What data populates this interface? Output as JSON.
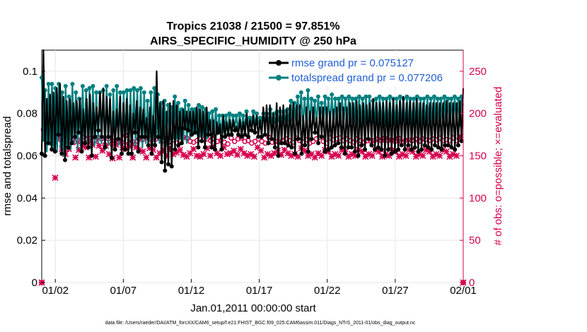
{
  "chart_data": {
    "type": "line",
    "title": "Tropics 21038 / 21500 = 97.851%",
    "subtitle": "AIRS_SPECIFIC_HUMIDITY @ 250 hPa",
    "xlabel": "Jan.01,2011 00:00:00 start",
    "ylabel": "rmse and totalspread",
    "ylabel_right": "# of obs: o=possible; ×=evaluated",
    "footer": "data file: /Users/raeder/DAI/ATM_forcXX/CAM6_setup/f.e21.FHIST_BGC.f09_025.CAM6assim.011/Diags_NTrS_2011-01/obs_diag_output.nc",
    "x_ticks": [
      "01/02",
      "01/07",
      "01/12",
      "01/17",
      "01/22",
      "01/27",
      "02/01"
    ],
    "x_tick_days": [
      1,
      6,
      11,
      16,
      21,
      26,
      31
    ],
    "xlim": [
      0,
      31
    ],
    "ylim": [
      0,
      0.11
    ],
    "y_ticks": [
      "0",
      "0.02",
      "0.04",
      "0.06",
      "0.08",
      "0.1"
    ],
    "y_tick_values": [
      0,
      0.02,
      0.04,
      0.06,
      0.08,
      0.1
    ],
    "ylim_right": [
      0,
      275
    ],
    "y_ticks_right": [
      "0",
      "50",
      "100",
      "150",
      "200",
      "250"
    ],
    "y_tick_values_right": [
      0,
      50,
      100,
      150,
      200,
      250
    ],
    "grid": true,
    "legend_position": "top-right",
    "colors": {
      "rmse": "#000000",
      "spread": "#008080",
      "obs": "#d6004f",
      "legend": "#1f5fd6"
    },
    "series": [
      {
        "name": "rmse grand pr = 0.075127",
        "axis": "left",
        "marker": "dot",
        "values": [
          0.061,
          0.11,
          0.06,
          0.087,
          0.066,
          0.089,
          0.063,
          0.09,
          0.062,
          0.092,
          0.07,
          0.094,
          0.061,
          0.088,
          0.058,
          0.086,
          0.064,
          0.087,
          0.066,
          0.085,
          0.069,
          0.086,
          0.071,
          0.087,
          0.062,
          0.082,
          0.066,
          0.087,
          0.064,
          0.089,
          0.06,
          0.085,
          0.069,
          0.083,
          0.072,
          0.09,
          0.069,
          0.092,
          0.064,
          0.088,
          0.069,
          0.087,
          0.059,
          0.081,
          0.063,
          0.082,
          0.068,
          0.088,
          0.061,
          0.085,
          0.063,
          0.087,
          0.061,
          0.084,
          0.061,
          0.08,
          0.071,
          0.086,
          0.062,
          0.083,
          0.069,
          0.082,
          0.069,
          0.078,
          0.065,
          0.083,
          0.061,
          0.079,
          0.065,
          0.1,
          0.069,
          0.085,
          0.057,
          0.086,
          0.053,
          0.081,
          0.056,
          0.085,
          0.055,
          0.086,
          0.063,
          0.084,
          0.065,
          0.081,
          0.066,
          0.082,
          0.073,
          0.081,
          0.072,
          0.081,
          0.07,
          0.081,
          0.071,
          0.083,
          0.064,
          0.082,
          0.067,
          0.081,
          0.064,
          0.083,
          0.07,
          0.077,
          0.064,
          0.077,
          0.063,
          0.076,
          0.071,
          0.075,
          0.063,
          0.079,
          0.069,
          0.076,
          0.07,
          0.077,
          0.07,
          0.077,
          0.072,
          0.074,
          0.07,
          0.077,
          0.069,
          0.076,
          0.07,
          0.08,
          0.069,
          0.077,
          0.072,
          0.079,
          0.071,
          0.079,
          0.069,
          0.077,
          0.069,
          0.083,
          0.07,
          0.084,
          0.066,
          0.084,
          0.068,
          0.08,
          0.064,
          0.085,
          0.06,
          0.083,
          0.066,
          0.084,
          0.066,
          0.082,
          0.065,
          0.084,
          0.064,
          0.085,
          0.061,
          0.084,
          0.068,
          0.084,
          0.061,
          0.079,
          0.065,
          0.083,
          0.062,
          0.081,
          0.068,
          0.083,
          0.071,
          0.078,
          0.066,
          0.083,
          0.069,
          0.083,
          0.062,
          0.083,
          0.063,
          0.081,
          0.064,
          0.082,
          0.065,
          0.083,
          0.066,
          0.085,
          0.064,
          0.083,
          0.061,
          0.083,
          0.064,
          0.085,
          0.064,
          0.085,
          0.062,
          0.086,
          0.06,
          0.084,
          0.065,
          0.085,
          0.063,
          0.084,
          0.068,
          0.085,
          0.065,
          0.087,
          0.063,
          0.085,
          0.064,
          0.085,
          0.063,
          0.085,
          0.06,
          0.086,
          0.063,
          0.085,
          0.061,
          0.087,
          0.062,
          0.084,
          0.063,
          0.086,
          0.065,
          0.088,
          0.063,
          0.085,
          0.065,
          0.086,
          0.063,
          0.085,
          0.064,
          0.087,
          0.062,
          0.085,
          0.063,
          0.085,
          0.065,
          0.084,
          0.064,
          0.085,
          0.063,
          0.085,
          0.065,
          0.085,
          0.064,
          0.085,
          0.063,
          0.085,
          0.065,
          0.086,
          0.065,
          0.085,
          0.064,
          0.085,
          0.063,
          0.085,
          0.065,
          0.086,
          0.067,
          0.092
        ]
      },
      {
        "name": "totalspread grand pr = 0.077206",
        "axis": "left",
        "marker": "dot",
        "values": [
          0.097,
          0.067,
          0.091,
          0.062,
          0.094,
          0.065,
          0.094,
          0.062,
          0.092,
          0.062,
          0.094,
          0.064,
          0.09,
          0.06,
          0.093,
          0.063,
          0.088,
          0.063,
          0.094,
          0.066,
          0.09,
          0.063,
          0.087,
          0.063,
          0.093,
          0.066,
          0.091,
          0.066,
          0.092,
          0.063,
          0.093,
          0.065,
          0.09,
          0.066,
          0.09,
          0.066,
          0.091,
          0.063,
          0.093,
          0.065,
          0.089,
          0.064,
          0.091,
          0.064,
          0.093,
          0.065,
          0.09,
          0.063,
          0.09,
          0.066,
          0.091,
          0.064,
          0.091,
          0.065,
          0.092,
          0.065,
          0.091,
          0.066,
          0.092,
          0.064,
          0.09,
          0.066,
          0.086,
          0.067,
          0.09,
          0.065,
          0.092,
          0.068,
          0.089,
          0.066,
          0.085,
          0.068,
          0.086,
          0.065,
          0.084,
          0.068,
          0.083,
          0.068,
          0.088,
          0.068,
          0.085,
          0.068,
          0.082,
          0.067,
          0.086,
          0.066,
          0.084,
          0.068,
          0.082,
          0.07,
          0.082,
          0.07,
          0.084,
          0.069,
          0.083,
          0.069,
          0.082,
          0.068,
          0.08,
          0.071,
          0.081,
          0.07,
          0.082,
          0.07,
          0.079,
          0.071,
          0.079,
          0.071,
          0.079,
          0.071,
          0.08,
          0.07,
          0.079,
          0.073,
          0.079,
          0.072,
          0.08,
          0.072,
          0.079,
          0.073,
          0.081,
          0.074,
          0.078,
          0.075,
          0.081,
          0.074,
          0.08,
          0.075,
          0.078,
          0.075,
          0.08,
          0.076,
          0.08,
          0.076,
          0.082,
          0.076,
          0.08,
          0.075,
          0.081,
          0.076,
          0.081,
          0.075,
          0.081,
          0.076,
          0.082,
          0.075,
          0.086,
          0.075,
          0.085,
          0.076,
          0.088,
          0.076,
          0.09,
          0.074,
          0.087,
          0.075,
          0.091,
          0.074,
          0.087,
          0.075,
          0.086,
          0.075,
          0.088,
          0.076,
          0.085,
          0.074,
          0.088,
          0.075,
          0.087,
          0.075,
          0.089,
          0.074,
          0.087,
          0.075,
          0.087,
          0.074,
          0.088,
          0.076,
          0.087,
          0.075,
          0.088,
          0.074,
          0.087,
          0.075,
          0.087,
          0.074,
          0.088,
          0.075,
          0.087,
          0.075,
          0.088,
          0.074,
          0.088,
          0.075,
          0.086,
          0.075,
          0.087,
          0.074,
          0.088,
          0.075,
          0.087,
          0.074,
          0.087,
          0.075,
          0.088,
          0.074,
          0.087,
          0.075,
          0.087,
          0.074,
          0.088,
          0.075,
          0.087,
          0.074,
          0.088,
          0.075,
          0.087,
          0.074,
          0.087,
          0.075,
          0.088,
          0.074,
          0.087,
          0.075,
          0.087,
          0.074,
          0.088,
          0.075,
          0.087,
          0.074,
          0.088,
          0.075,
          0.087,
          0.074,
          0.087,
          0.075,
          0.088,
          0.074,
          0.087,
          0.075,
          0.087,
          0.074,
          0.088,
          0.075,
          0.087,
          0.074,
          0.088,
          0.084
        ]
      },
      {
        "name": "obs possible",
        "axis": "right",
        "marker": "circle",
        "values": [
          0,
          181,
          182,
          178,
          176,
          180,
          176,
          165,
          170,
          171,
          176,
          169,
          169,
          165,
          163,
          170,
          171,
          172,
          176,
          166,
          168,
          169,
          175,
          166,
          168,
          172,
          170,
          166,
          174,
          171,
          172,
          168,
          165,
          172,
          166,
          170,
          169,
          163,
          166,
          170,
          172,
          164,
          169,
          168,
          171,
          167,
          173,
          166,
          169,
          174,
          168,
          164,
          172,
          167,
          168,
          163,
          171,
          170,
          166,
          169,
          167,
          172,
          164,
          170,
          168,
          166,
          173,
          170,
          167,
          171,
          165,
          168,
          173,
          171,
          168,
          167,
          170,
          169,
          166,
          170,
          170,
          168,
          166,
          172,
          168,
          171,
          164,
          167,
          167,
          166,
          172,
          168,
          167,
          170,
          166,
          169,
          164,
          170,
          166,
          168,
          168,
          170,
          165,
          167,
          172,
          168,
          170,
          166,
          169,
          164,
          170,
          171,
          165,
          167,
          172,
          170,
          166,
          171,
          168,
          167,
          164,
          168,
          170,
          165,
          172,
          167,
          168,
          170,
          166,
          167,
          171,
          165,
          169,
          172,
          168,
          166,
          170,
          167,
          169,
          166,
          171,
          168,
          167,
          170,
          165,
          168,
          172,
          166,
          169,
          171,
          167,
          168,
          170,
          166,
          168,
          169,
          171,
          165,
          170,
          167,
          168,
          170,
          166,
          172,
          168,
          167,
          170,
          165,
          168,
          171,
          166,
          169,
          168,
          170,
          167,
          171,
          166,
          168,
          169,
          170,
          167,
          168,
          172,
          166,
          169,
          170,
          167,
          168,
          171,
          166,
          170,
          168,
          169,
          167,
          171,
          168,
          166,
          170,
          169,
          168,
          167,
          171,
          170,
          168,
          166,
          169,
          170,
          167,
          168,
          171,
          169,
          166,
          170,
          168,
          167,
          169,
          171,
          168,
          166,
          170,
          169,
          167,
          168,
          170,
          166,
          169,
          171,
          168,
          167,
          170,
          168,
          169,
          166,
          171,
          170,
          168,
          167,
          169,
          170,
          168,
          166,
          171,
          169,
          168,
          167,
          170,
          172,
          0
        ]
      },
      {
        "name": "obs evaluated",
        "axis": "right",
        "marker": "star",
        "values": [
          0,
          157,
          175,
          170,
          177,
          162,
          173,
          132,
          124,
          152,
          172,
          160,
          158,
          176,
          152,
          163,
          158,
          154,
          166,
          150,
          148,
          165,
          157,
          152,
          162,
          151,
          160,
          158,
          148,
          156,
          163,
          153,
          149,
          158,
          162,
          147,
          156,
          150,
          162,
          158,
          152,
          160,
          147,
          155,
          163,
          159,
          148,
          154,
          160,
          151,
          158,
          149,
          161,
          155,
          148,
          153,
          160,
          152,
          157,
          149,
          155,
          161,
          148,
          154,
          159,
          150,
          157,
          152,
          148,
          159,
          153,
          147,
          156,
          161,
          150,
          155,
          158,
          149,
          152,
          160,
          154,
          147,
          157,
          162,
          151,
          155,
          149,
          158,
          153,
          146,
          158,
          160,
          150,
          155,
          149,
          157,
          152,
          148,
          159,
          154,
          150,
          156,
          161,
          149,
          153,
          158,
          150,
          155,
          160,
          148,
          152,
          157,
          153,
          149,
          156,
          160,
          151,
          154,
          158,
          148,
          153,
          157,
          150,
          155,
          152,
          158,
          149,
          154,
          160,
          151,
          156,
          153,
          148,
          157,
          152,
          155,
          150,
          158,
          153,
          149,
          156,
          160,
          151,
          155,
          157,
          149,
          153,
          158,
          150,
          155,
          152,
          157,
          149,
          154,
          159,
          151,
          156,
          153,
          150,
          157,
          152,
          155,
          148,
          158,
          153,
          156,
          150,
          154,
          157,
          151,
          155,
          153,
          149,
          158,
          152,
          156,
          150,
          154,
          157,
          151,
          155,
          153,
          149,
          158,
          152,
          156,
          150,
          154,
          157,
          151,
          155,
          153,
          149,
          158,
          152,
          156,
          150,
          154,
          157,
          151,
          155,
          153,
          149,
          158,
          152,
          156,
          150,
          154,
          157,
          151,
          155,
          153,
          149,
          158,
          152,
          156,
          150,
          154,
          157,
          151,
          155,
          153,
          149,
          158,
          152,
          156,
          150,
          154,
          157,
          151,
          155,
          153,
          149,
          158,
          152,
          156,
          150,
          154,
          157,
          151,
          155,
          153,
          149,
          158,
          152,
          156,
          150,
          154,
          172,
          170,
          0
        ]
      }
    ]
  }
}
